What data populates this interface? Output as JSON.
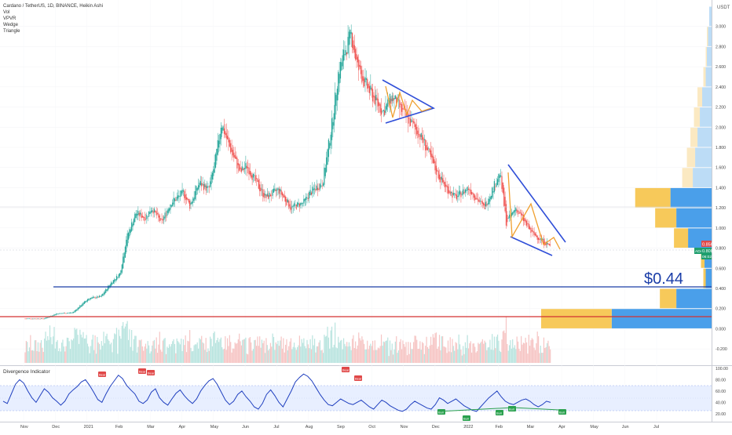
{
  "header": {
    "title": "Cardano / TetherUS, 1D, BINANCE, Heikin Ashi",
    "indicators": [
      "Vol",
      "VPVR",
      "Wedge",
      "Triangle"
    ]
  },
  "top_right": {
    "currency": "USDT"
  },
  "price_panel": {
    "annotation": "$0.44",
    "markers": {
      "red": "0.856",
      "green_price": "0.800",
      "green_symbol": "ADAUSDT",
      "countdown": "06:02:51"
    }
  },
  "oscillator": {
    "title": "Divergence Indicator",
    "labels": {
      "bear": "Bear",
      "bull": "Bull"
    }
  },
  "chart_data": [
    {
      "type": "candlestick",
      "title": "Cardano / TetherUS, 1D, BINANCE, Heikin Ashi",
      "x_ticks": [
        "Nov",
        "Dec",
        "2021",
        "Feb",
        "Mar",
        "Apr",
        "May",
        "Jun",
        "Jul",
        "Aug",
        "Sep",
        "Oct",
        "Nov",
        "Dec",
        "2022",
        "Feb",
        "Mar",
        "Apr",
        "May",
        "Jun",
        "Jul"
      ],
      "y_ticks": [
        "3.000",
        "2.800",
        "2.600",
        "2.400",
        "2.200",
        "2.000",
        "1.800",
        "1.600",
        "1.400",
        "1.200",
        "1.000",
        "0.800",
        "0.600",
        "0.400",
        "0.200",
        "0.000",
        "-0.200"
      ],
      "ylim": [
        -0.3,
        3.2
      ],
      "price_path": [
        [
          0,
          0.1
        ],
        [
          0.6,
          0.1
        ],
        [
          1.0,
          0.15
        ],
        [
          1.5,
          0.16
        ],
        [
          2.0,
          0.3
        ],
        [
          2.4,
          0.32
        ],
        [
          2.7,
          0.45
        ],
        [
          3.0,
          0.55
        ],
        [
          3.2,
          0.9
        ],
        [
          3.5,
          1.15
        ],
        [
          3.8,
          1.1
        ],
        [
          4.0,
          1.2
        ],
        [
          4.3,
          1.05
        ],
        [
          4.6,
          1.25
        ],
        [
          5.0,
          1.35
        ],
        [
          5.2,
          1.22
        ],
        [
          5.5,
          1.45
        ],
        [
          5.8,
          1.38
        ],
        [
          6.0,
          1.65
        ],
        [
          6.2,
          2.05
        ],
        [
          6.4,
          1.85
        ],
        [
          6.8,
          1.55
        ],
        [
          7.0,
          1.62
        ],
        [
          7.3,
          1.45
        ],
        [
          7.6,
          1.3
        ],
        [
          8.0,
          1.38
        ],
        [
          8.4,
          1.2
        ],
        [
          8.8,
          1.25
        ],
        [
          9.0,
          1.35
        ],
        [
          9.4,
          1.45
        ],
        [
          9.7,
          2.05
        ],
        [
          9.9,
          2.55
        ],
        [
          10.1,
          2.75
        ],
        [
          10.3,
          2.92
        ],
        [
          10.5,
          2.6
        ],
        [
          10.8,
          2.4
        ],
        [
          11.0,
          2.3
        ],
        [
          11.3,
          2.15
        ],
        [
          11.6,
          2.3
        ],
        [
          12.0,
          2.12
        ],
        [
          12.3,
          2.0
        ],
        [
          12.6,
          1.85
        ],
        [
          13.0,
          1.55
        ],
        [
          13.3,
          1.4
        ],
        [
          13.6,
          1.3
        ],
        [
          14.0,
          1.4
        ],
        [
          14.5,
          1.2
        ],
        [
          15.0,
          1.55
        ],
        [
          15.2,
          1.05
        ],
        [
          15.5,
          1.2
        ],
        [
          15.8,
          1.05
        ],
        [
          16.0,
          0.95
        ],
        [
          16.4,
          0.86
        ],
        [
          16.6,
          0.82
        ]
      ],
      "volume_profile": [
        {
          "price": 3.1,
          "up": 0,
          "down": 2
        },
        {
          "price": 2.9,
          "up": 1,
          "down": 3
        },
        {
          "price": 2.7,
          "up": 1,
          "down": 4
        },
        {
          "price": 2.5,
          "up": 2,
          "down": 5
        },
        {
          "price": 2.3,
          "up": 4,
          "down": 8
        },
        {
          "price": 2.1,
          "up": 5,
          "down": 10
        },
        {
          "price": 1.9,
          "up": 6,
          "down": 12
        },
        {
          "price": 1.7,
          "up": 7,
          "down": 14
        },
        {
          "price": 1.5,
          "up": 9,
          "down": 16
        },
        {
          "price": 1.3,
          "up": 30,
          "down": 35
        },
        {
          "price": 1.1,
          "up": 18,
          "down": 30
        },
        {
          "price": 0.9,
          "up": 12,
          "down": 20
        },
        {
          "price": 0.7,
          "up": 3,
          "down": 6
        },
        {
          "price": 0.5,
          "up": 2,
          "down": 5
        },
        {
          "price": 0.3,
          "up": 14,
          "down": 30
        },
        {
          "price": 0.1,
          "up": 60,
          "down": 85
        }
      ],
      "horizontal_levels": [
        {
          "price": 0.44,
          "color": "#1a3da8",
          "label": "$0.44"
        },
        {
          "price": 0.14,
          "color": "#d33232",
          "label": ""
        }
      ],
      "patterns": [
        "Triangle (Sep-Nov)",
        "Falling Wedge (2022)"
      ]
    },
    {
      "type": "line",
      "title": "Divergence Indicator",
      "y_ticks": [
        "100.00",
        "80.00",
        "60.00",
        "40.00",
        "20.00"
      ],
      "ylim": [
        10,
        100
      ],
      "band": [
        30,
        70
      ],
      "values": [
        42,
        38,
        55,
        72,
        80,
        74,
        60,
        48,
        40,
        52,
        64,
        58,
        48,
        42,
        35,
        42,
        55,
        62,
        68,
        76,
        80,
        70,
        58,
        45,
        40,
        55,
        68,
        78,
        88,
        82,
        70,
        62,
        55,
        42,
        38,
        44,
        58,
        64,
        48,
        40,
        35,
        46,
        56,
        62,
        52,
        44,
        38,
        46,
        60,
        70,
        78,
        82,
        72,
        58,
        44,
        36,
        42,
        54,
        60,
        50,
        42,
        32,
        28,
        38,
        54,
        62,
        52,
        40,
        32,
        46,
        60,
        76,
        84,
        90,
        86,
        78,
        66,
        54,
        44,
        36,
        34,
        40,
        46,
        42,
        38,
        36,
        40,
        44,
        38,
        32,
        28,
        36,
        44,
        40,
        34,
        30,
        26,
        24,
        28,
        36,
        42,
        38,
        34,
        30,
        28,
        36,
        48,
        44,
        38,
        42,
        46,
        40,
        34,
        30,
        26,
        24,
        32,
        40,
        48,
        54,
        60,
        50,
        42,
        38,
        36,
        40,
        44,
        46,
        42,
        36,
        32,
        36,
        42,
        40
      ],
      "signals": [
        "Bear",
        "Bear",
        "Bear",
        "Bear",
        "Bear",
        "Bull",
        "Bull",
        "Bull",
        "Bull",
        "Bull"
      ]
    }
  ]
}
